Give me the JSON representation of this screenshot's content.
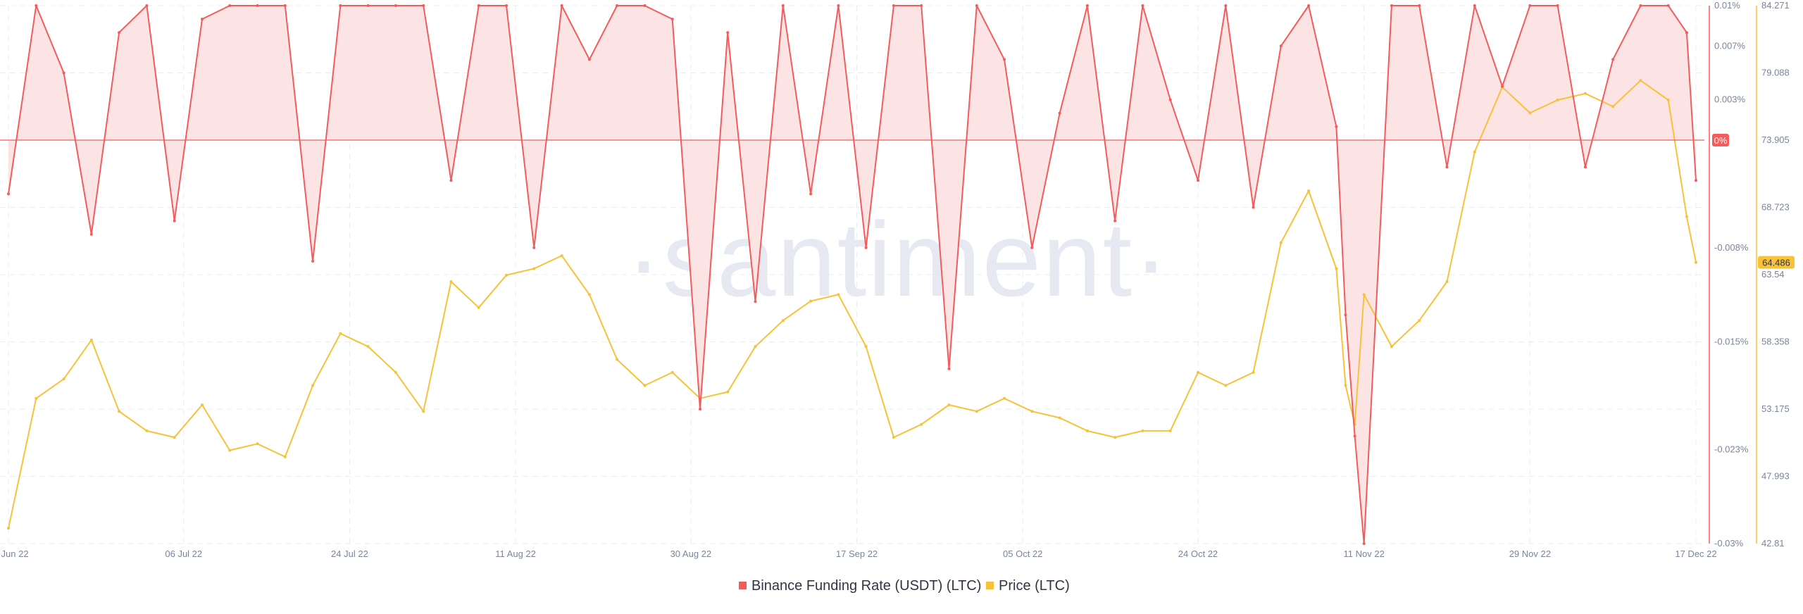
{
  "watermark": "·santiment·",
  "colors": {
    "funding": "#f25c5c",
    "funding_fill": "#fde4e4",
    "price": "#f7c23a",
    "grid": "#e9ecf2",
    "zero_badge": "#f25c5c",
    "price_badge": "#f7c23a",
    "axis_text": "#7a8599"
  },
  "chart_data": {
    "type": "line",
    "legend_position": "bottom-center",
    "grid": true,
    "x_ticks": [
      "17 Jun 22",
      "06 Jul 22",
      "24 Jul 22",
      "11 Aug 22",
      "30 Aug 22",
      "17 Sep 22",
      "05 Oct 22",
      "24 Oct 22",
      "11 Nov 22",
      "29 Nov 22",
      "17 Dec 22"
    ],
    "funding_axis": {
      "ticks": [
        "0.01%",
        "0.007%",
        "0.003%",
        "-0.008%",
        "-0.015%",
        "-0.023%",
        "-0.03%"
      ],
      "range": [
        -0.03,
        0.01
      ],
      "zero_label": "0%"
    },
    "price_axis": {
      "ticks": [
        "84.271",
        "79.088",
        "73.905",
        "68.723",
        "63.54",
        "58.358",
        "53.175",
        "47.993",
        "42.81"
      ],
      "range": [
        42.81,
        84.271
      ],
      "last_value_label": "64.486"
    },
    "series": [
      {
        "name": "Binance Funding Rate (USDT) (LTC)",
        "axis": "left",
        "x": [
          "17 Jun 22",
          "20 Jun 22",
          "23 Jun 22",
          "26 Jun 22",
          "29 Jun 22",
          "02 Jul 22",
          "05 Jul 22",
          "08 Jul 22",
          "11 Jul 22",
          "14 Jul 22",
          "17 Jul 22",
          "20 Jul 22",
          "23 Jul 22",
          "26 Jul 22",
          "29 Jul 22",
          "01 Aug 22",
          "04 Aug 22",
          "07 Aug 22",
          "10 Aug 22",
          "13 Aug 22",
          "16 Aug 22",
          "19 Aug 22",
          "22 Aug 22",
          "25 Aug 22",
          "28 Aug 22",
          "31 Aug 22",
          "03 Sep 22",
          "06 Sep 22",
          "09 Sep 22",
          "12 Sep 22",
          "15 Sep 22",
          "18 Sep 22",
          "21 Sep 22",
          "24 Sep 22",
          "27 Sep 22",
          "30 Sep 22",
          "03 Oct 22",
          "06 Oct 22",
          "09 Oct 22",
          "12 Oct 22",
          "15 Oct 22",
          "18 Oct 22",
          "21 Oct 22",
          "24 Oct 22",
          "27 Oct 22",
          "30 Oct 22",
          "02 Nov 22",
          "05 Nov 22",
          "08 Nov 22",
          "09 Nov 22",
          "10 Nov 22",
          "11 Nov 22",
          "14 Nov 22",
          "17 Nov 22",
          "20 Nov 22",
          "23 Nov 22",
          "26 Nov 22",
          "29 Nov 22",
          "02 Dec 22",
          "05 Dec 22",
          "08 Dec 22",
          "11 Dec 22",
          "14 Dec 22",
          "16 Dec 22",
          "17 Dec 22"
        ],
        "values": [
          -0.004,
          0.01,
          0.005,
          -0.007,
          0.008,
          0.01,
          -0.006,
          0.009,
          0.01,
          0.01,
          0.01,
          -0.009,
          0.01,
          0.01,
          0.01,
          0.01,
          -0.003,
          0.01,
          0.01,
          -0.008,
          0.01,
          0.006,
          0.01,
          0.01,
          0.009,
          -0.02,
          0.008,
          -0.012,
          0.01,
          -0.004,
          0.01,
          -0.008,
          0.01,
          0.01,
          -0.017,
          0.01,
          0.006,
          -0.008,
          0.002,
          0.01,
          -0.006,
          0.01,
          0.003,
          -0.003,
          0.01,
          -0.005,
          0.007,
          0.01,
          0.001,
          -0.013,
          -0.022,
          -0.03,
          0.01,
          0.01,
          -0.002,
          0.01,
          0.004,
          0.01,
          0.01,
          -0.002,
          0.006,
          0.01,
          0.01,
          0.008,
          -0.003
        ]
      },
      {
        "name": "Price (LTC)",
        "axis": "right",
        "x": [
          "17 Jun 22",
          "20 Jun 22",
          "23 Jun 22",
          "26 Jun 22",
          "29 Jun 22",
          "02 Jul 22",
          "05 Jul 22",
          "08 Jul 22",
          "11 Jul 22",
          "14 Jul 22",
          "17 Jul 22",
          "20 Jul 22",
          "23 Jul 22",
          "26 Jul 22",
          "29 Jul 22",
          "01 Aug 22",
          "04 Aug 22",
          "07 Aug 22",
          "10 Aug 22",
          "13 Aug 22",
          "16 Aug 22",
          "19 Aug 22",
          "22 Aug 22",
          "25 Aug 22",
          "28 Aug 22",
          "31 Aug 22",
          "03 Sep 22",
          "06 Sep 22",
          "09 Sep 22",
          "12 Sep 22",
          "15 Sep 22",
          "18 Sep 22",
          "21 Sep 22",
          "24 Sep 22",
          "27 Sep 22",
          "30 Sep 22",
          "03 Oct 22",
          "06 Oct 22",
          "09 Oct 22",
          "12 Oct 22",
          "15 Oct 22",
          "18 Oct 22",
          "21 Oct 22",
          "24 Oct 22",
          "27 Oct 22",
          "30 Oct 22",
          "02 Nov 22",
          "05 Nov 22",
          "08 Nov 22",
          "09 Nov 22",
          "10 Nov 22",
          "11 Nov 22",
          "14 Nov 22",
          "17 Nov 22",
          "20 Nov 22",
          "23 Nov 22",
          "26 Nov 22",
          "29 Nov 22",
          "02 Dec 22",
          "05 Dec 22",
          "08 Dec 22",
          "11 Dec 22",
          "14 Dec 22",
          "16 Dec 22",
          "17 Dec 22"
        ],
        "values": [
          44.0,
          54.0,
          55.5,
          58.5,
          53.0,
          51.5,
          51.0,
          53.5,
          50.0,
          50.5,
          49.5,
          55.0,
          59.0,
          58.0,
          56.0,
          53.0,
          63.0,
          61.0,
          63.5,
          64.0,
          65.0,
          62.0,
          57.0,
          55.0,
          56.0,
          54.0,
          54.5,
          58.0,
          60.0,
          61.5,
          62.0,
          58.0,
          51.0,
          52.0,
          53.5,
          53.0,
          54.0,
          53.0,
          52.5,
          51.5,
          51.0,
          51.5,
          51.5,
          56.0,
          55.0,
          56.0,
          66.0,
          70.0,
          64.0,
          55.0,
          52.0,
          62.0,
          58.0,
          60.0,
          63.0,
          73.0,
          78.0,
          76.0,
          77.0,
          77.5,
          76.5,
          78.5,
          77.0,
          68.0,
          64.486
        ]
      }
    ]
  }
}
